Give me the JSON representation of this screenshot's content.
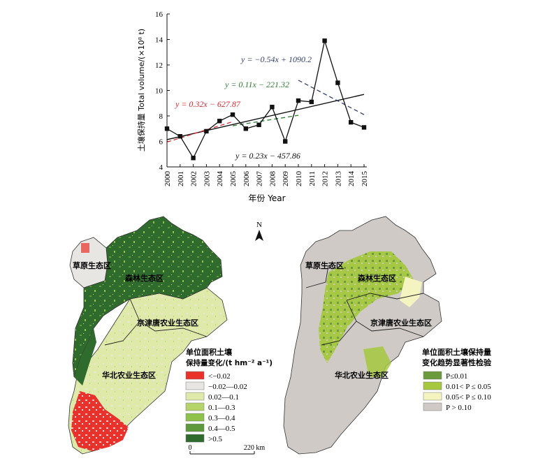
{
  "chart_data": {
    "type": "line",
    "x": [
      2000,
      2001,
      2002,
      2003,
      2004,
      2005,
      2006,
      2007,
      2008,
      2009,
      2010,
      2011,
      2012,
      2013,
      2014,
      2015
    ],
    "series": [
      {
        "values": [
          7.0,
          6.4,
          4.7,
          6.8,
          7.6,
          8.1,
          7.0,
          7.3,
          8.7,
          6.0,
          9.2,
          9.1,
          13.9,
          10.6,
          7.5,
          7.1
        ]
      }
    ],
    "trendlines": [
      {
        "label": "y = 0.23x − 457.86",
        "x_range": [
          2000,
          2015
        ],
        "y_range": [
          6.14,
          9.69
        ],
        "style": "solid",
        "color": "#111111"
      },
      {
        "label": "y = 0.32x − 627.87",
        "x_range": [
          2000,
          2005
        ],
        "y_range": [
          5.95,
          7.55
        ],
        "style": "dashed",
        "color": "#d9262c"
      },
      {
        "label": "y = 0.11x − 221.32",
        "x_range": [
          2005,
          2010
        ],
        "y_range": [
          7.23,
          8.05
        ],
        "style": "dashed",
        "color": "#2e7d32"
      },
      {
        "label": "y = −0.54x + 1090.2",
        "x_range": [
          2010,
          2015
        ],
        "y_range": [
          10.8,
          8.1
        ],
        "style": "dashed",
        "color": "#35406e"
      }
    ],
    "xlabel": "年份 Year",
    "ylabel": "土壤保持量 Total volume/(×10⁸ t)",
    "ylim": [
      4,
      16
    ],
    "yticks": [
      "4",
      "6",
      "8",
      "10",
      "12",
      "14",
      "16"
    ],
    "xticks": [
      "2000",
      "2001",
      "2002",
      "2003",
      "2004",
      "2005",
      "2006",
      "2007",
      "2008",
      "2009",
      "2010",
      "2011",
      "2012",
      "2013",
      "2014",
      "2015"
    ]
  },
  "maps": {
    "north_label": "N",
    "left": {
      "regions": [
        "草原生态区",
        "森林生态区",
        "京津唐农业生态区",
        "华北农业生态区"
      ],
      "legend_title_line1": "单位面积土壤",
      "legend_title_line2": "保持量变化/(t hm⁻² a⁻¹)",
      "legend": [
        {
          "label": "<−0.02",
          "color": "#e8322b"
        },
        {
          "label": "−0.02—0.02",
          "color": "#e8e6e2"
        },
        {
          "label": "0.02—0.1",
          "color": "#dfe9a9"
        },
        {
          "label": "0.1—0.3",
          "color": "#b5d56a"
        },
        {
          "label": "0.3—0.4",
          "color": "#8fc24a"
        },
        {
          "label": "0.4—0.5",
          "color": "#5e9a3b"
        },
        {
          "label": ">0.5",
          "color": "#2f6b2c"
        }
      ],
      "scale_start": "0",
      "scale_end": "220 km"
    },
    "right": {
      "regions": [
        "草原生态区",
        "森林生态区",
        "京津唐农业生态区",
        "华北农业生态区"
      ],
      "legend_title_line1": "单位面积土壤保持量",
      "legend_title_line2": "变化趋势显著性检验",
      "legend": [
        {
          "label": "P≤0.01",
          "color": "#6a9a3c"
        },
        {
          "label": "0.01< P ≤ 0.05",
          "color": "#a5c83e"
        },
        {
          "label": "0.05< P ≤ 0.10",
          "color": "#f3f4c0"
        },
        {
          "label": "P > 0.10",
          "color": "#cfcac6"
        }
      ]
    }
  }
}
